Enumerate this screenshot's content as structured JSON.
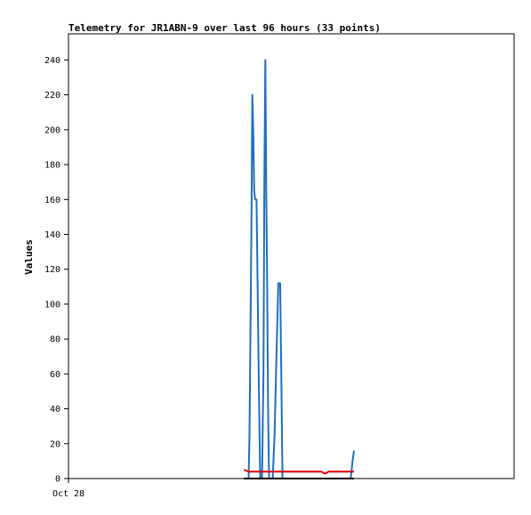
{
  "chart_data": {
    "type": "line",
    "title": "Telemetry for JR1ABN-9 over last 96 hours (33 points)",
    "xlabel": "",
    "ylabel": "Values",
    "x_tick_labels": [
      "Oct 28"
    ],
    "x_range_hours": [
      0,
      96
    ],
    "ylim": [
      0,
      255
    ],
    "yticks": [
      0,
      20,
      40,
      60,
      80,
      100,
      120,
      140,
      160,
      180,
      200,
      220,
      240
    ],
    "grid": false,
    "legend": "none",
    "series": [
      {
        "color": "#1f6fbf",
        "points": [
          [
            38.8,
            0
          ],
          [
            39.0,
            25
          ],
          [
            39.2,
            85
          ],
          [
            39.4,
            140
          ],
          [
            39.6,
            220
          ],
          [
            39.8,
            200
          ],
          [
            40.0,
            165
          ],
          [
            40.2,
            160
          ],
          [
            40.5,
            160
          ],
          [
            40.8,
            100
          ],
          [
            41.0,
            55
          ],
          [
            41.3,
            0
          ],
          [
            41.7,
            0
          ],
          [
            42.0,
            60
          ],
          [
            42.2,
            170
          ],
          [
            42.4,
            240
          ],
          [
            42.6,
            168
          ],
          [
            42.8,
            110
          ],
          [
            43.0,
            40
          ],
          [
            43.2,
            0
          ],
          [
            44.0,
            0
          ],
          [
            44.4,
            25
          ],
          [
            44.8,
            70
          ],
          [
            45.2,
            112
          ],
          [
            45.6,
            112
          ],
          [
            45.9,
            50
          ],
          [
            46.1,
            0
          ],
          [
            50.0,
            0
          ],
          [
            56.0,
            0
          ],
          [
            60.8,
            0
          ],
          [
            61.2,
            10
          ],
          [
            61.5,
            16
          ]
        ]
      },
      {
        "color": "#e00000",
        "points": [
          [
            37.8,
            5
          ],
          [
            38.8,
            4
          ],
          [
            44.0,
            4
          ],
          [
            50.0,
            4
          ],
          [
            54.5,
            4
          ],
          [
            55.0,
            3
          ],
          [
            55.5,
            3
          ],
          [
            56.0,
            4
          ],
          [
            61.5,
            4
          ]
        ]
      },
      {
        "color": "#000000",
        "points": [
          [
            37.8,
            0
          ],
          [
            44.0,
            0
          ],
          [
            50.0,
            0
          ],
          [
            56.0,
            0
          ],
          [
            61.5,
            0
          ]
        ]
      }
    ]
  }
}
